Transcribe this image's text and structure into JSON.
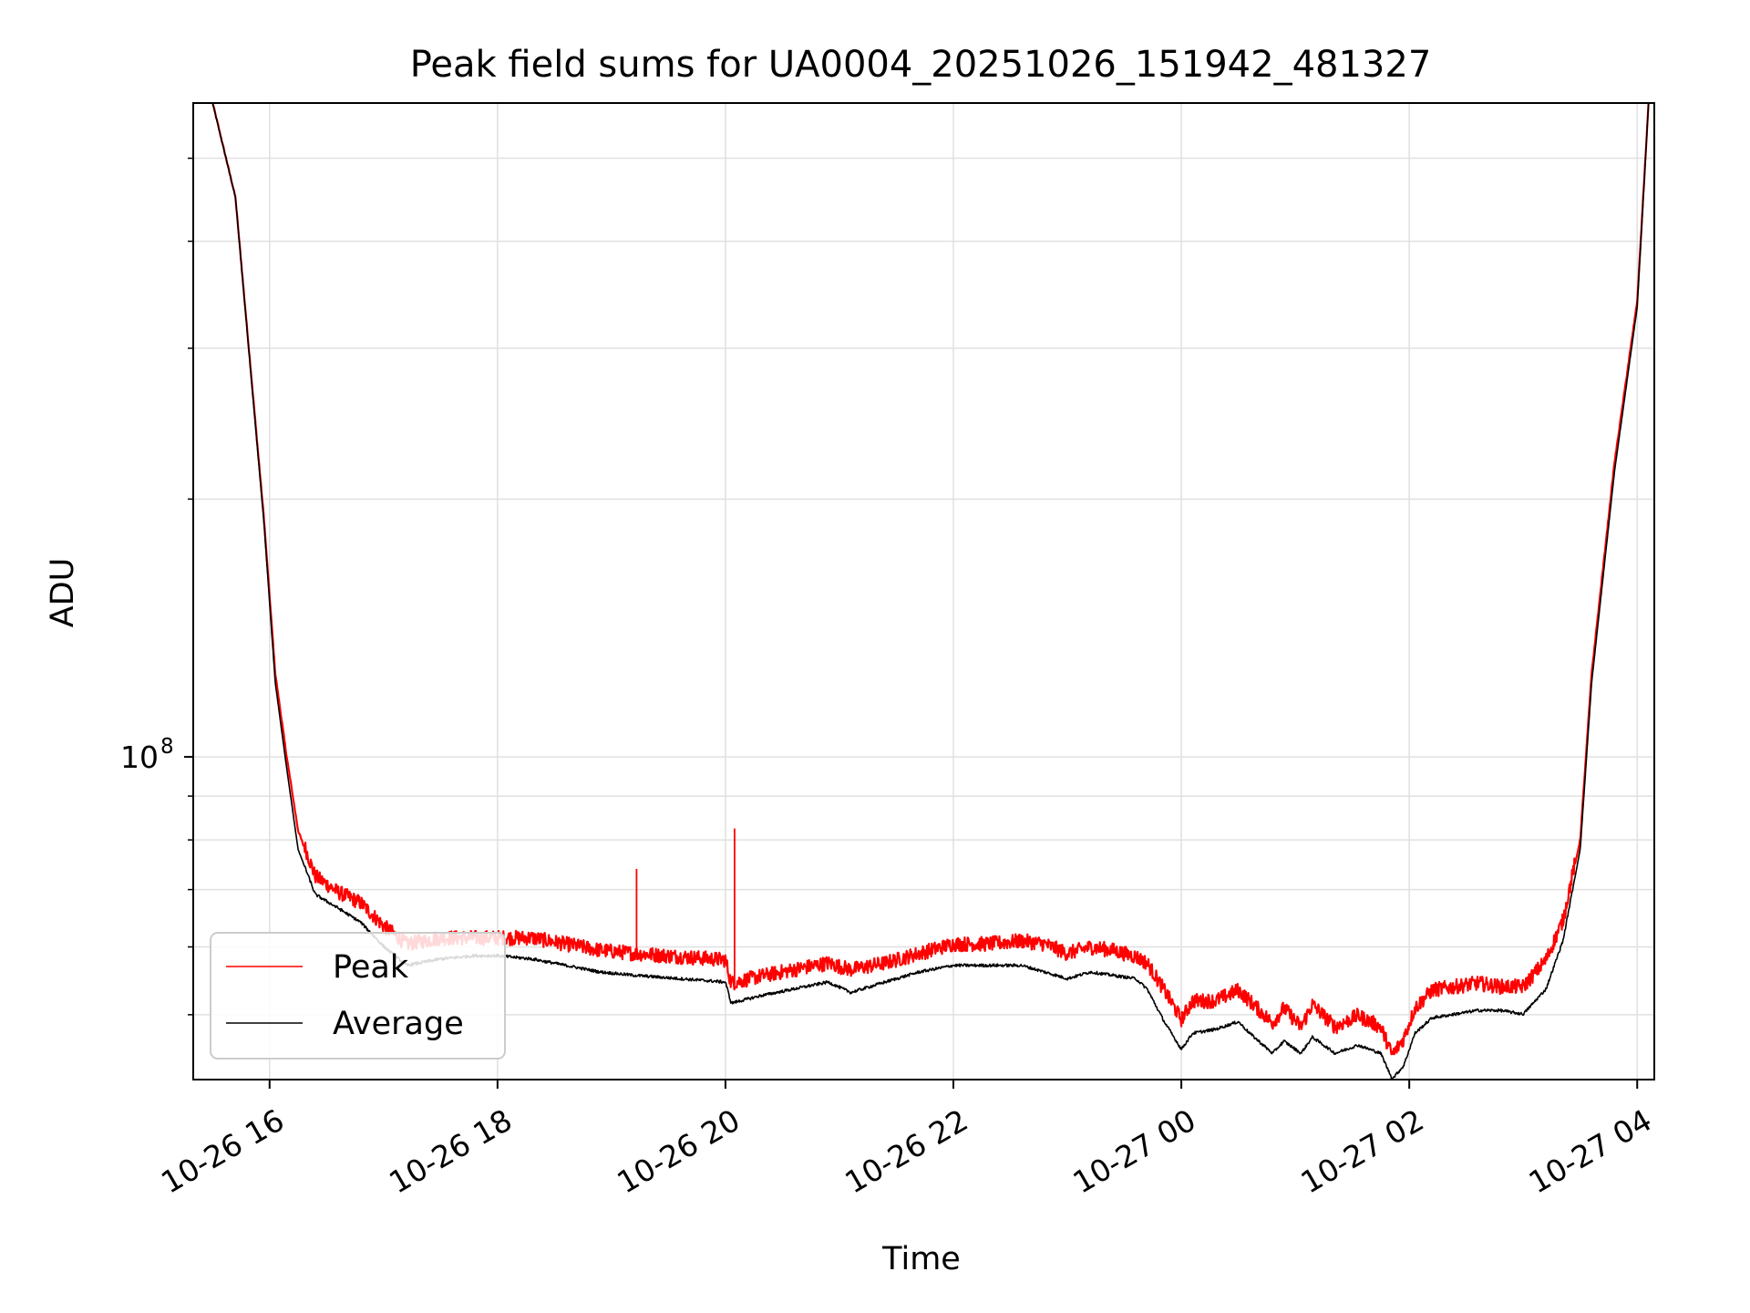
{
  "chart_data": {
    "type": "line",
    "title": "Peak field sums for UA0004_20251026_151942_481327",
    "xlabel": "Time",
    "ylabel": "ADU",
    "yscale": "log",
    "ylim": [
      42000000,
      580000000
    ],
    "y_major_tick": {
      "value": 100000000,
      "base": "10",
      "exp": "8"
    },
    "y_minor_ticks": [
      50000000,
      60000000,
      70000000,
      80000000,
      90000000,
      200000000,
      300000000,
      400000000,
      500000000
    ],
    "xlim_hours": [
      15.33,
      28.15
    ],
    "x_ticks": [
      {
        "h": 16,
        "label": "10-26 16"
      },
      {
        "h": 18,
        "label": "10-26 18"
      },
      {
        "h": 20,
        "label": "10-26 20"
      },
      {
        "h": 22,
        "label": "10-26 22"
      },
      {
        "h": 24,
        "label": "10-27 00"
      },
      {
        "h": 26,
        "label": "10-27 02"
      },
      {
        "h": 28,
        "label": "10-27 04"
      }
    ],
    "grid": true,
    "legend_position": "lower-left",
    "colors": {
      "peak": "#ff0000",
      "average": "#000000",
      "grid": "#e0e0e0"
    },
    "series": [
      {
        "name": "Peak",
        "noise_amp": 0.04,
        "hours": [
          15.5,
          15.7,
          15.95,
          16.05,
          16.15,
          16.25,
          16.4,
          16.6,
          16.8,
          17.0,
          17.2,
          17.5,
          17.8,
          18.0,
          18.3,
          18.6,
          18.9,
          19.2,
          19.6,
          20.0,
          20.05,
          20.3,
          20.6,
          20.9,
          21.1,
          21.4,
          21.7,
          22.0,
          22.3,
          22.6,
          22.8,
          23.0,
          23.2,
          23.4,
          23.6,
          23.7,
          23.85,
          24.0,
          24.1,
          24.3,
          24.5,
          24.6,
          24.8,
          24.9,
          25.05,
          25.15,
          25.35,
          25.55,
          25.75,
          25.85,
          25.95,
          26.05,
          26.2,
          26.6,
          26.8,
          27.0,
          27.2,
          27.35,
          27.5,
          27.6,
          27.8,
          28.0,
          28.1
        ],
        "values": [
          580000000,
          450000000,
          190000000,
          125000000,
          100000000,
          82000000,
          72000000,
          69000000,
          67000000,
          63000000,
          60000000,
          61000000,
          61000000,
          61000000,
          61000000,
          60000000,
          59000000,
          58500000,
          58000000,
          57500000,
          54000000,
          55000000,
          56000000,
          57000000,
          56000000,
          57000000,
          58500000,
          60000000,
          60000000,
          60500000,
          60000000,
          58500000,
          59500000,
          59000000,
          58000000,
          57000000,
          53000000,
          49000000,
          51500000,
          51500000,
          53000000,
          51500000,
          48500000,
          50500000,
          48000000,
          51000000,
          48000000,
          49500000,
          48000000,
          44500000,
          46500000,
          50500000,
          53000000,
          54000000,
          53500000,
          53500000,
          57500000,
          64000000,
          80000000,
          125000000,
          220000000,
          340000000,
          580000000
        ]
      },
      {
        "name": "Average",
        "noise_amp": 0.008,
        "hours": [
          15.5,
          15.7,
          15.95,
          16.05,
          16.15,
          16.25,
          16.4,
          16.6,
          16.8,
          17.0,
          17.2,
          17.5,
          17.8,
          18.0,
          18.3,
          18.6,
          18.9,
          19.2,
          19.6,
          20.0,
          20.05,
          20.3,
          20.6,
          20.9,
          21.1,
          21.4,
          21.7,
          22.0,
          22.3,
          22.6,
          22.8,
          23.0,
          23.2,
          23.4,
          23.6,
          23.7,
          23.85,
          24.0,
          24.1,
          24.3,
          24.5,
          24.6,
          24.8,
          24.9,
          25.05,
          25.15,
          25.35,
          25.55,
          25.75,
          25.85,
          25.95,
          26.05,
          26.2,
          26.6,
          26.8,
          27.0,
          27.2,
          27.35,
          27.5,
          27.6,
          27.8,
          28.0,
          28.1
        ],
        "values": [
          580000000,
          450000000,
          188000000,
          122000000,
          97000000,
          78000000,
          69000000,
          66500000,
          64000000,
          60000000,
          57000000,
          58000000,
          58500000,
          58500000,
          58000000,
          57000000,
          56000000,
          55500000,
          55000000,
          54500000,
          51500000,
          52500000,
          53500000,
          54500000,
          53000000,
          54500000,
          56000000,
          57000000,
          57000000,
          57000000,
          56000000,
          55000000,
          56000000,
          55500000,
          55000000,
          53500000,
          49000000,
          45500000,
          47500000,
          48000000,
          49000000,
          47500000,
          45000000,
          46500000,
          45000000,
          47000000,
          45000000,
          46000000,
          45000000,
          42000000,
          43500000,
          47500000,
          49500000,
          50500000,
          50500000,
          50000000,
          53500000,
          61000000,
          78000000,
          122000000,
          215000000,
          335000000,
          580000000
        ]
      }
    ],
    "spikes": [
      {
        "series": "Peak",
        "hour": 19.22,
        "value": 74000000
      },
      {
        "series": "Peak",
        "hour": 20.08,
        "value": 82500000
      }
    ],
    "legend": [
      {
        "label": "Peak",
        "color": "#ff0000"
      },
      {
        "label": "Average",
        "color": "#000000"
      }
    ]
  }
}
